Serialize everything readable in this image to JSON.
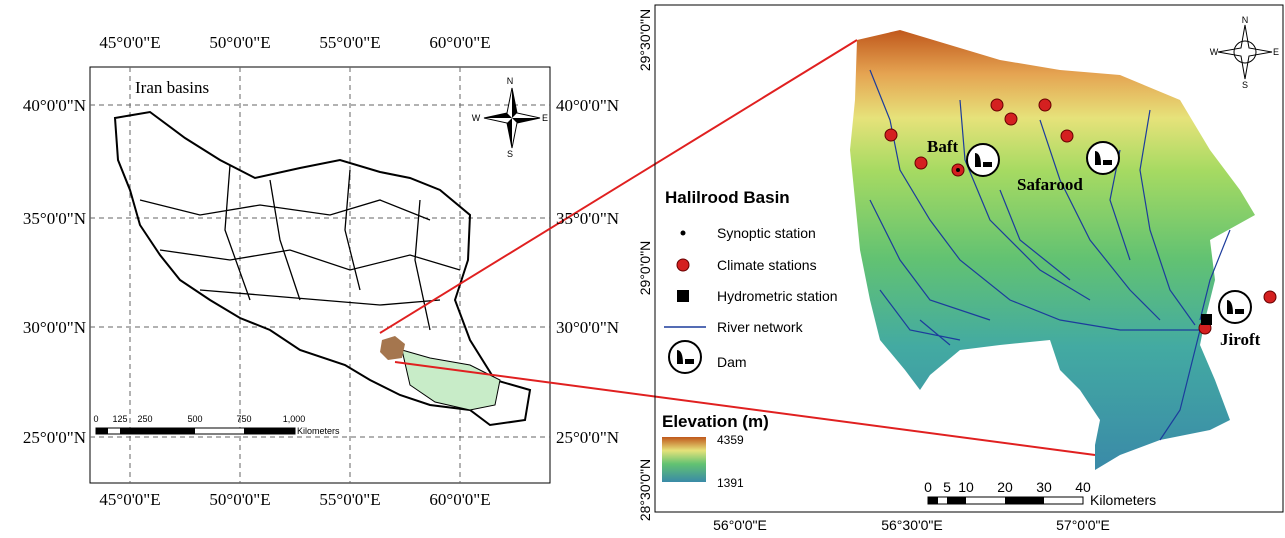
{
  "left_map": {
    "title": "Iran basins",
    "top_labels": [
      "45°0'0\"E",
      "50°0'0\"E",
      "55°0'0\"E",
      "60°0'0\"E"
    ],
    "bottom_labels": [
      "45°0'0\"E",
      "50°0'0\"E",
      "55°0'0\"E",
      "60°0'0\"E"
    ],
    "left_labels": [
      "40°0'0\"N",
      "35°0'0\"N",
      "30°0'0\"N",
      "25°0'0\"N"
    ],
    "right_labels": [
      "40°0'0\"N",
      "35°0'0\"N",
      "30°0'0\"N",
      "25°0'0\"N"
    ],
    "scale_labels": [
      "0",
      "125",
      "250",
      "500",
      "750",
      "1,000"
    ],
    "scale_unit": "Kilometers",
    "compass": {
      "n": "N",
      "s": "S",
      "e": "E",
      "w": "W"
    }
  },
  "right_map": {
    "bottom_labels": [
      "56°0'0\"E",
      "56°30'0\"E",
      "57°0'0\"E"
    ],
    "left_labels": [
      "29°30'0\"N",
      "29°0'0\"N",
      "28°30'0\"N"
    ],
    "places": [
      "Baft",
      "Safarood",
      "Jiroft"
    ],
    "legend": {
      "title": "Halilrood Basin",
      "items": [
        "Synoptic station",
        "Climate stations",
        "Hydrometric station",
        "River network",
        "Dam"
      ]
    },
    "elevation": {
      "title": "Elevation (m)",
      "high": "4359",
      "low": "1391"
    },
    "scale_labels": [
      "0",
      "5",
      "10",
      "20",
      "30",
      "40"
    ],
    "scale_unit": "Kilometers",
    "compass": {
      "n": "N",
      "s": "S",
      "e": "E",
      "w": "W"
    }
  }
}
